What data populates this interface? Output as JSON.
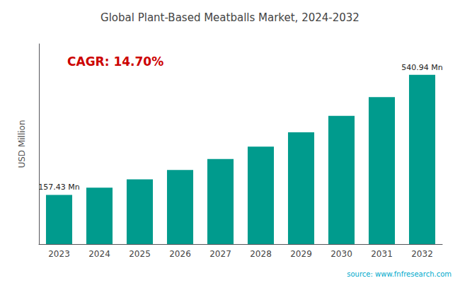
{
  "chart_data": {
    "type": "bar",
    "title": "Global Plant-Based Meatballs Market, 2024-2032",
    "ylabel": "USD Million",
    "categories": [
      "2023",
      "2024",
      "2025",
      "2026",
      "2027",
      "2028",
      "2029",
      "2030",
      "2031",
      "2032"
    ],
    "values": [
      157.43,
      180.56,
      206.92,
      237.11,
      271.78,
      311.73,
      357.35,
      409.67,
      469.89,
      540.94
    ],
    "color": "#009B8D",
    "ylim": [
      0,
      640
    ],
    "grid": false,
    "tick_labels": "x",
    "annotations": [
      {
        "text": "157.43 Mn",
        "x": "2023",
        "y": 157.43
      },
      {
        "text": "540.94 Mn",
        "x": "2032",
        "y": 540.94
      },
      {
        "text": "CAGR: 14.70%",
        "color": "#CC0000"
      }
    ],
    "source": "source: www.fnfresearch.com"
  }
}
